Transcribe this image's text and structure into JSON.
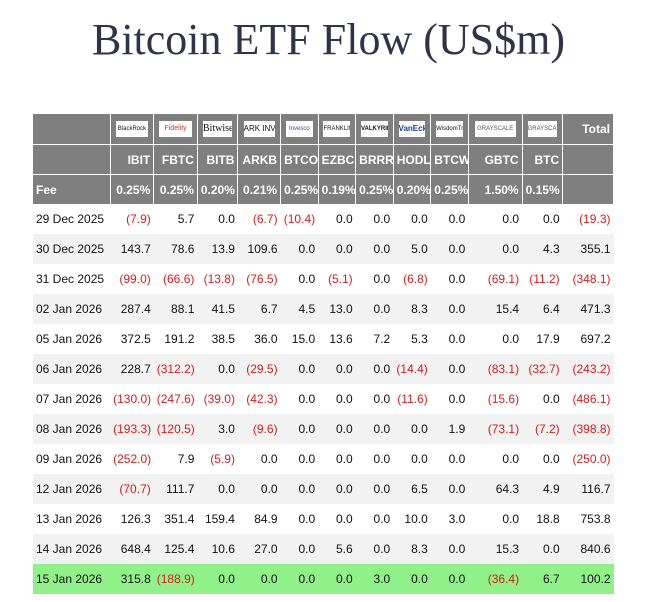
{
  "title": "Bitcoin ETF Flow (US$m)",
  "colors": {
    "header_bg": "#7f7f7f",
    "negative": "#d81b1b",
    "highlight_row": "#90f08a",
    "title": "#2f3548"
  },
  "logos": [
    "BlackRock",
    "Fidelity",
    "Bitwise",
    "ARK INVEST",
    "Invesco",
    "FRANKLIN TEMPLETON",
    "VALKYRIE",
    "VanEck",
    "WisdomTree",
    "GRAYSCALE",
    "GRAYSCALE"
  ],
  "total_label": "Total",
  "fee_label": "Fee",
  "tickers": [
    "IBIT",
    "FBTC",
    "BITB",
    "ARKB",
    "BTCO",
    "EZBC",
    "BRRR",
    "HODL",
    "BTCW",
    "GBTC",
    "BTC"
  ],
  "fees": [
    "0.25%",
    "0.25%",
    "0.20%",
    "0.21%",
    "0.25%",
    "0.19%",
    "0.25%",
    "0.20%",
    "0.25%",
    "1.50%",
    "0.15%"
  ],
  "rows": [
    {
      "date": "29 Dec 2025",
      "cells": [
        "(7.9)",
        "5.7",
        "0.0",
        "(6.7)",
        "(10.4)",
        "0.0",
        "0.0",
        "0.0",
        "0.0",
        "0.0",
        "0.0",
        "(19.3)"
      ]
    },
    {
      "date": "30 Dec 2025",
      "cells": [
        "143.7",
        "78.6",
        "13.9",
        "109.6",
        "0.0",
        "0.0",
        "0.0",
        "5.0",
        "0.0",
        "0.0",
        "4.3",
        "355.1"
      ]
    },
    {
      "date": "31 Dec 2025",
      "cells": [
        "(99.0)",
        "(66.6)",
        "(13.8)",
        "(76.5)",
        "0.0",
        "(5.1)",
        "0.0",
        "(6.8)",
        "0.0",
        "(69.1)",
        "(11.2)",
        "(348.1)"
      ]
    },
    {
      "date": "02 Jan 2026",
      "cells": [
        "287.4",
        "88.1",
        "41.5",
        "6.7",
        "4.5",
        "13.0",
        "0.0",
        "8.3",
        "0.0",
        "15.4",
        "6.4",
        "471.3"
      ]
    },
    {
      "date": "05 Jan 2026",
      "cells": [
        "372.5",
        "191.2",
        "38.5",
        "36.0",
        "15.0",
        "13.6",
        "7.2",
        "5.3",
        "0.0",
        "0.0",
        "17.9",
        "697.2"
      ]
    },
    {
      "date": "06 Jan 2026",
      "cells": [
        "228.7",
        "(312.2)",
        "0.0",
        "(29.5)",
        "0.0",
        "0.0",
        "0.0",
        "(14.4)",
        "0.0",
        "(83.1)",
        "(32.7)",
        "(243.2)"
      ]
    },
    {
      "date": "07 Jan 2026",
      "cells": [
        "(130.0)",
        "(247.6)",
        "(39.0)",
        "(42.3)",
        "0.0",
        "0.0",
        "0.0",
        "(11.6)",
        "0.0",
        "(15.6)",
        "0.0",
        "(486.1)"
      ]
    },
    {
      "date": "08 Jan 2026",
      "cells": [
        "(193.3)",
        "(120.5)",
        "3.0",
        "(9.6)",
        "0.0",
        "0.0",
        "0.0",
        "0.0",
        "1.9",
        "(73.1)",
        "(7.2)",
        "(398.8)"
      ]
    },
    {
      "date": "09 Jan 2026",
      "cells": [
        "(252.0)",
        "7.9",
        "(5.9)",
        "0.0",
        "0.0",
        "0.0",
        "0.0",
        "0.0",
        "0.0",
        "0.0",
        "0.0",
        "(250.0)"
      ]
    },
    {
      "date": "12 Jan 2026",
      "cells": [
        "(70.7)",
        "111.7",
        "0.0",
        "0.0",
        "0.0",
        "0.0",
        "0.0",
        "6.5",
        "0.0",
        "64.3",
        "4.9",
        "116.7"
      ]
    },
    {
      "date": "13 Jan 2026",
      "cells": [
        "126.3",
        "351.4",
        "159.4",
        "84.9",
        "0.0",
        "0.0",
        "0.0",
        "10.0",
        "3.0",
        "0.0",
        "18.8",
        "753.8"
      ]
    },
    {
      "date": "14 Jan 2026",
      "cells": [
        "648.4",
        "125.4",
        "10.6",
        "27.0",
        "0.0",
        "5.6",
        "0.0",
        "8.3",
        "0.0",
        "15.3",
        "0.0",
        "840.6"
      ]
    },
    {
      "date": "15 Jan 2026",
      "cells": [
        "315.8",
        "(188.9)",
        "0.0",
        "0.0",
        "0.0",
        "0.0",
        "3.0",
        "0.0",
        "0.0",
        "(36.4)",
        "6.7",
        "100.2"
      ]
    }
  ],
  "chart_data": {
    "type": "table",
    "title": "Bitcoin ETF Flow (US$m)",
    "columns": [
      "IBIT",
      "FBTC",
      "BITB",
      "ARKB",
      "BTCO",
      "EZBC",
      "BRRR",
      "HODL",
      "BTCW",
      "GBTC",
      "BTC",
      "Total"
    ],
    "fees": [
      "0.25%",
      "0.25%",
      "0.20%",
      "0.21%",
      "0.25%",
      "0.19%",
      "0.25%",
      "0.20%",
      "0.25%",
      "1.50%",
      "0.15%",
      ""
    ],
    "row_labels": [
      "29 Dec 2025",
      "30 Dec 2025",
      "31 Dec 2025",
      "02 Jan 2026",
      "05 Jan 2026",
      "06 Jan 2026",
      "07 Jan 2026",
      "08 Jan 2026",
      "09 Jan 2026",
      "12 Jan 2026",
      "13 Jan 2026",
      "14 Jan 2026",
      "15 Jan 2026"
    ],
    "values": [
      [
        -7.9,
        5.7,
        0.0,
        -6.7,
        -10.4,
        0.0,
        0.0,
        0.0,
        0.0,
        0.0,
        0.0,
        -19.3
      ],
      [
        143.7,
        78.6,
        13.9,
        109.6,
        0.0,
        0.0,
        0.0,
        5.0,
        0.0,
        0.0,
        4.3,
        355.1
      ],
      [
        -99.0,
        -66.6,
        -13.8,
        -76.5,
        0.0,
        -5.1,
        0.0,
        -6.8,
        0.0,
        -69.1,
        -11.2,
        -348.1
      ],
      [
        287.4,
        88.1,
        41.5,
        6.7,
        4.5,
        13.0,
        0.0,
        8.3,
        0.0,
        15.4,
        6.4,
        471.3
      ],
      [
        372.5,
        191.2,
        38.5,
        36.0,
        15.0,
        13.6,
        7.2,
        5.3,
        0.0,
        0.0,
        17.9,
        697.2
      ],
      [
        228.7,
        -312.2,
        0.0,
        -29.5,
        0.0,
        0.0,
        0.0,
        -14.4,
        0.0,
        -83.1,
        -32.7,
        -243.2
      ],
      [
        -130.0,
        -247.6,
        -39.0,
        -42.3,
        0.0,
        0.0,
        0.0,
        -11.6,
        0.0,
        -15.6,
        0.0,
        -486.1
      ],
      [
        -193.3,
        -120.5,
        3.0,
        -9.6,
        0.0,
        0.0,
        0.0,
        0.0,
        1.9,
        -73.1,
        -7.2,
        -398.8
      ],
      [
        -252.0,
        7.9,
        -5.9,
        0.0,
        0.0,
        0.0,
        0.0,
        0.0,
        0.0,
        0.0,
        0.0,
        -250.0
      ],
      [
        -70.7,
        111.7,
        0.0,
        0.0,
        0.0,
        0.0,
        0.0,
        6.5,
        0.0,
        64.3,
        4.9,
        116.7
      ],
      [
        126.3,
        351.4,
        159.4,
        84.9,
        0.0,
        0.0,
        0.0,
        10.0,
        3.0,
        0.0,
        18.8,
        753.8
      ],
      [
        648.4,
        125.4,
        10.6,
        27.0,
        0.0,
        5.6,
        0.0,
        8.3,
        0.0,
        15.3,
        0.0,
        840.6
      ],
      [
        315.8,
        -188.9,
        0.0,
        0.0,
        0.0,
        0.0,
        3.0,
        0.0,
        0.0,
        -36.4,
        6.7,
        100.2
      ]
    ]
  }
}
